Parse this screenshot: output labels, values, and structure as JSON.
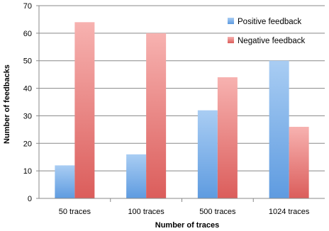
{
  "chart_data": {
    "type": "bar",
    "title": "",
    "xlabel": "Number of traces",
    "ylabel": "Number of feedbacks",
    "categories": [
      "50 traces",
      "100 traces",
      "500 traces",
      "1024 traces"
    ],
    "series": [
      {
        "name": "Positive feedback",
        "values": [
          12,
          16,
          32,
          50
        ]
      },
      {
        "name": "Negative feedback",
        "values": [
          64,
          60,
          44,
          26
        ]
      }
    ],
    "ylim": [
      0,
      70
    ],
    "yticks": [
      0,
      10,
      20,
      30,
      40,
      50,
      60,
      70
    ],
    "grid": true,
    "legend_position": "top-right",
    "colors": {
      "positive_top": "#a9cdf3",
      "positive_bottom": "#5e9be0",
      "negative_top": "#f7b2b0",
      "negative_bottom": "#db5d5b",
      "grid": "#888888",
      "axis": "#888888"
    }
  }
}
